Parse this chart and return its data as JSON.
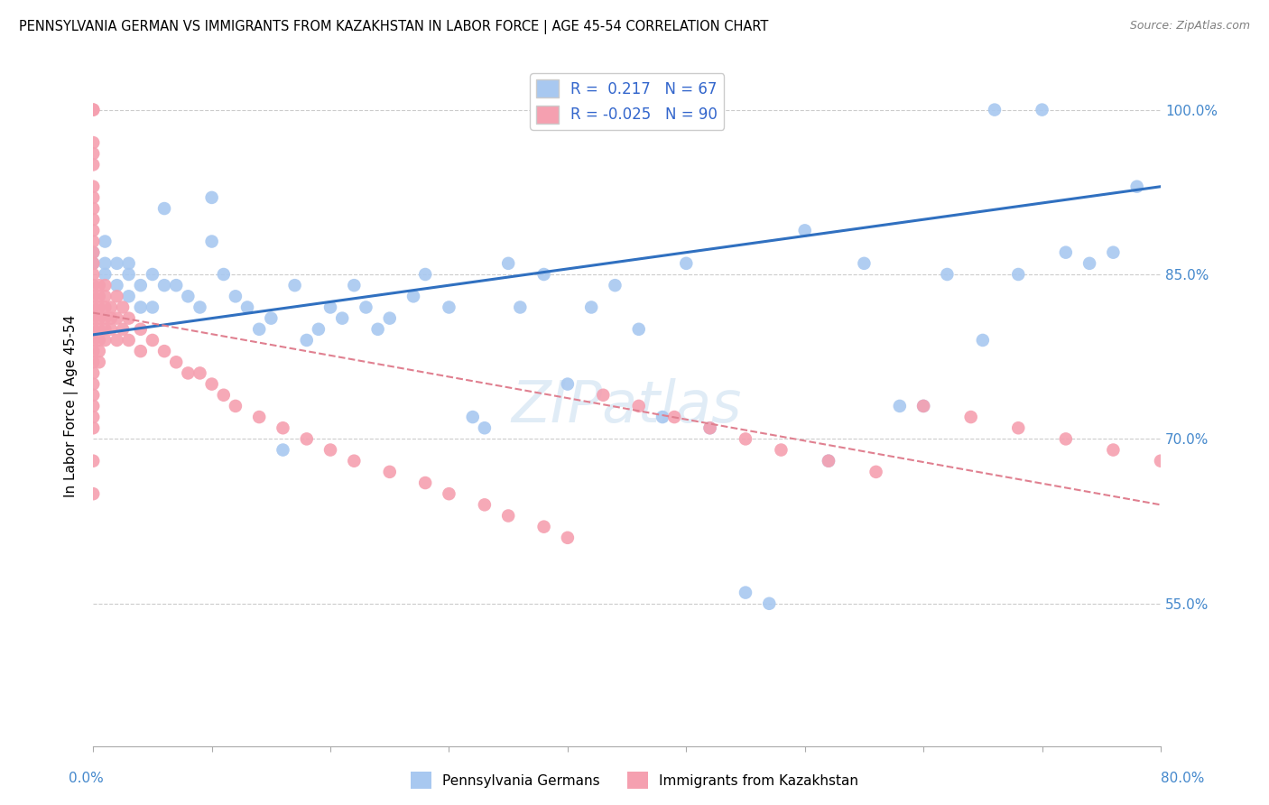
{
  "title": "PENNSYLVANIA GERMAN VS IMMIGRANTS FROM KAZAKHSTAN IN LABOR FORCE | AGE 45-54 CORRELATION CHART",
  "source": "Source: ZipAtlas.com",
  "ylabel": "In Labor Force | Age 45-54",
  "ytick_labels": [
    "55.0%",
    "70.0%",
    "85.0%",
    "100.0%"
  ],
  "ytick_values": [
    0.55,
    0.7,
    0.85,
    1.0
  ],
  "xrange": [
    0.0,
    0.9
  ],
  "yrange": [
    0.42,
    1.04
  ],
  "legend_blue_r": "0.217",
  "legend_blue_n": "67",
  "legend_pink_r": "-0.025",
  "legend_pink_n": "90",
  "blue_color": "#a8c8f0",
  "pink_color": "#f5a0b0",
  "blue_line_color": "#3070c0",
  "pink_line_color": "#e08090",
  "watermark": "ZIPatlas",
  "blue_x": [
    0.0,
    0.0,
    0.01,
    0.01,
    0.01,
    0.02,
    0.02,
    0.03,
    0.03,
    0.03,
    0.04,
    0.04,
    0.05,
    0.05,
    0.06,
    0.06,
    0.07,
    0.08,
    0.09,
    0.1,
    0.1,
    0.11,
    0.12,
    0.13,
    0.14,
    0.15,
    0.16,
    0.17,
    0.18,
    0.19,
    0.2,
    0.21,
    0.22,
    0.23,
    0.24,
    0.25,
    0.27,
    0.28,
    0.3,
    0.32,
    0.33,
    0.35,
    0.36,
    0.38,
    0.4,
    0.42,
    0.44,
    0.46,
    0.48,
    0.5,
    0.52,
    0.55,
    0.57,
    0.6,
    0.62,
    0.65,
    0.68,
    0.7,
    0.72,
    0.75,
    0.76,
    0.78,
    0.8,
    0.82,
    0.84,
    0.86,
    0.88
  ],
  "blue_y": [
    0.87,
    0.86,
    0.88,
    0.86,
    0.85,
    0.86,
    0.84,
    0.86,
    0.85,
    0.83,
    0.84,
    0.82,
    0.85,
    0.82,
    0.91,
    0.84,
    0.84,
    0.83,
    0.82,
    0.92,
    0.88,
    0.85,
    0.83,
    0.82,
    0.8,
    0.81,
    0.69,
    0.84,
    0.79,
    0.8,
    0.82,
    0.81,
    0.84,
    0.82,
    0.8,
    0.81,
    0.83,
    0.85,
    0.82,
    0.72,
    0.71,
    0.86,
    0.82,
    0.85,
    0.75,
    0.82,
    0.84,
    0.8,
    0.72,
    0.86,
    0.71,
    0.56,
    0.55,
    0.89,
    0.68,
    0.86,
    0.73,
    0.73,
    0.85,
    0.79,
    1.0,
    0.85,
    1.0,
    0.87,
    0.86,
    0.87,
    0.93
  ],
  "pink_x": [
    0.0,
    0.0,
    0.0,
    0.0,
    0.0,
    0.0,
    0.0,
    0.0,
    0.0,
    0.0,
    0.0,
    0.0,
    0.0,
    0.0,
    0.0,
    0.0,
    0.0,
    0.0,
    0.0,
    0.0,
    0.0,
    0.0,
    0.0,
    0.0,
    0.0,
    0.0,
    0.0,
    0.0,
    0.0,
    0.0,
    0.005,
    0.005,
    0.005,
    0.005,
    0.005,
    0.005,
    0.005,
    0.005,
    0.01,
    0.01,
    0.01,
    0.01,
    0.01,
    0.01,
    0.015,
    0.015,
    0.015,
    0.02,
    0.02,
    0.02,
    0.025,
    0.025,
    0.03,
    0.03,
    0.04,
    0.04,
    0.05,
    0.06,
    0.07,
    0.08,
    0.09,
    0.1,
    0.11,
    0.12,
    0.14,
    0.16,
    0.18,
    0.2,
    0.22,
    0.25,
    0.28,
    0.3,
    0.33,
    0.35,
    0.38,
    0.4,
    0.43,
    0.46,
    0.49,
    0.52,
    0.55,
    0.58,
    0.62,
    0.66,
    0.7,
    0.74,
    0.78,
    0.82,
    0.86,
    0.9
  ],
  "pink_y": [
    1.0,
    1.0,
    0.97,
    0.96,
    0.95,
    0.93,
    0.92,
    0.91,
    0.9,
    0.89,
    0.88,
    0.87,
    0.86,
    0.85,
    0.84,
    0.83,
    0.82,
    0.81,
    0.8,
    0.79,
    0.78,
    0.77,
    0.76,
    0.75,
    0.74,
    0.73,
    0.72,
    0.71,
    0.68,
    0.65,
    0.84,
    0.83,
    0.82,
    0.81,
    0.8,
    0.79,
    0.78,
    0.77,
    0.84,
    0.83,
    0.82,
    0.81,
    0.8,
    0.79,
    0.82,
    0.81,
    0.8,
    0.83,
    0.81,
    0.79,
    0.82,
    0.8,
    0.81,
    0.79,
    0.8,
    0.78,
    0.79,
    0.78,
    0.77,
    0.76,
    0.76,
    0.75,
    0.74,
    0.73,
    0.72,
    0.71,
    0.7,
    0.69,
    0.68,
    0.67,
    0.66,
    0.65,
    0.64,
    0.63,
    0.62,
    0.61,
    0.74,
    0.73,
    0.72,
    0.71,
    0.7,
    0.69,
    0.68,
    0.67,
    0.73,
    0.72,
    0.71,
    0.7,
    0.69,
    0.68
  ],
  "blue_line_x0": 0.0,
  "blue_line_x1": 0.9,
  "blue_line_y0": 0.795,
  "blue_line_y1": 0.93,
  "pink_line_x0": 0.0,
  "pink_line_x1": 0.9,
  "pink_line_y0": 0.815,
  "pink_line_y1": 0.64
}
